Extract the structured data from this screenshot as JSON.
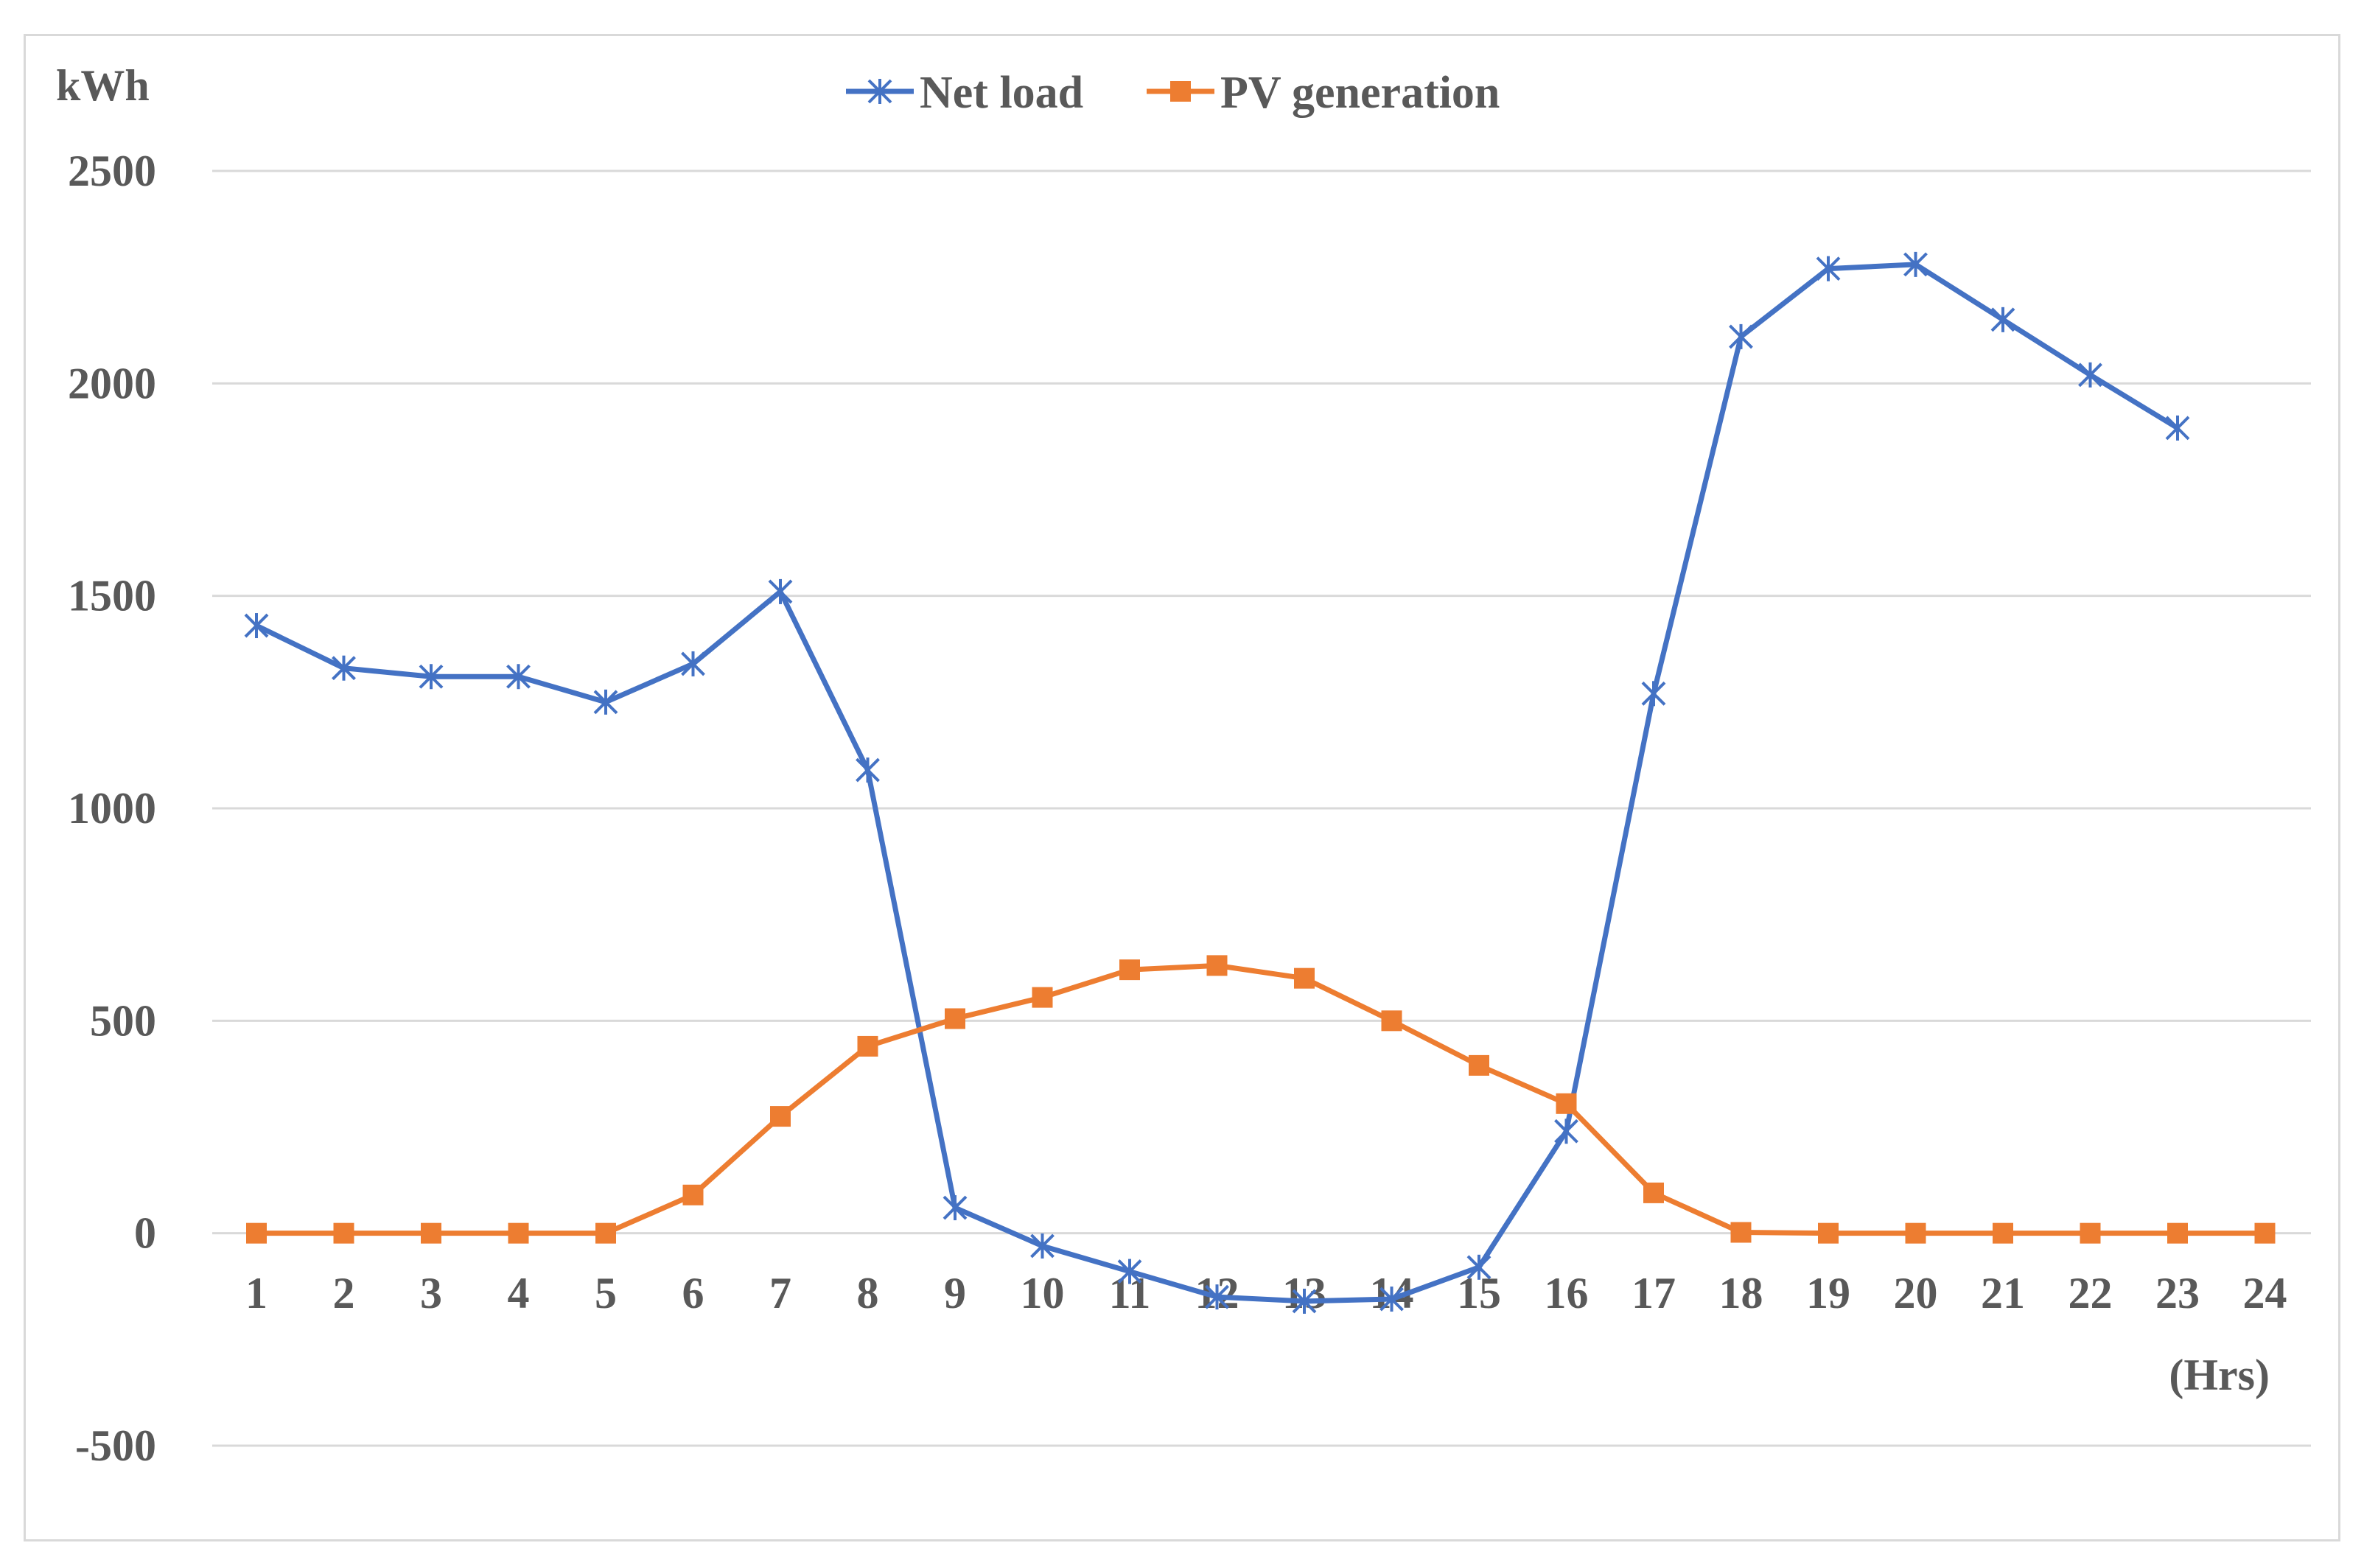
{
  "chart_data": {
    "type": "line",
    "ylabel": "kWh",
    "xlabel": "(Hrs)",
    "categories": [
      "1",
      "2",
      "3",
      "4",
      "5",
      "6",
      "7",
      "8",
      "9",
      "10",
      "11",
      "12",
      "13",
      "14",
      "15",
      "16",
      "17",
      "18",
      "19",
      "20",
      "21",
      "22",
      "23",
      "24"
    ],
    "yticks": [
      "2500",
      "2000",
      "1500",
      "1000",
      "500",
      "0",
      "-500"
    ],
    "ylim": [
      -500,
      2500
    ],
    "grid": true,
    "legend_position": "top",
    "series": [
      {
        "name": "Net load",
        "color": "#4472c4",
        "marker": "star",
        "values": [
          1430,
          1330,
          1310,
          1310,
          1250,
          1340,
          1510,
          1090,
          60,
          -30,
          -90,
          -150,
          -160,
          -155,
          -80,
          240,
          1270,
          2110,
          2270,
          2280,
          2150,
          2020,
          1895,
          null
        ]
      },
      {
        "name": "PV generation",
        "color": "#ed7d31",
        "marker": "square",
        "values": [
          0,
          0,
          0,
          0,
          0,
          90,
          275,
          440,
          505,
          555,
          620,
          630,
          600,
          500,
          395,
          305,
          95,
          2,
          0,
          0,
          0,
          0,
          0,
          0
        ]
      }
    ]
  }
}
